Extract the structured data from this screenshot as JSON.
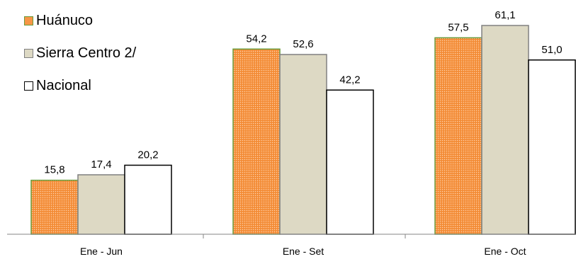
{
  "chart_data": {
    "type": "bar",
    "title": "",
    "xlabel": "",
    "ylabel": "",
    "ylim": [
      0,
      66
    ],
    "grid": false,
    "legend_position": "top-left",
    "categories": [
      "Ene - Jun",
      "Ene - Set",
      "Ene - Oct"
    ],
    "series": [
      {
        "name": "Huánuco",
        "values": [
          15.8,
          54.2,
          57.5
        ],
        "labels": [
          "15,8",
          "54,2",
          "57,5"
        ],
        "color": "#f79646",
        "border": "#6a9a3a",
        "pattern": "dotted"
      },
      {
        "name": "Sierra Centro 2/",
        "values": [
          17.4,
          52.6,
          61.1
        ],
        "labels": [
          "17,4",
          "52,6",
          "61,1"
        ],
        "color": "#ddd9c4",
        "border": "#808080",
        "pattern": "solid"
      },
      {
        "name": "Nacional",
        "values": [
          20.2,
          42.2,
          51.0
        ],
        "labels": [
          "20,2",
          "42,2",
          "51,0"
        ],
        "color": "#ffffff",
        "border": "#000000",
        "pattern": "solid"
      }
    ]
  }
}
